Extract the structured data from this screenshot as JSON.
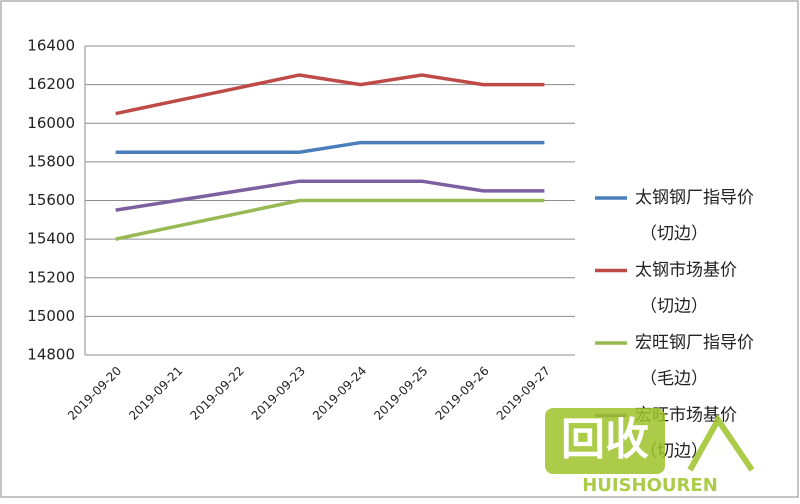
{
  "chart_data": {
    "type": "line",
    "categories": [
      "2019-09-20",
      "2019-09-21",
      "2019-09-22",
      "2019-09-23",
      "2019-09-24",
      "2019-09-25",
      "2019-09-26",
      "2019-09-27"
    ],
    "series": [
      {
        "name": "太钢钢厂指导价（切边）",
        "color": "#4a7ebb",
        "values": [
          15850,
          15850,
          15850,
          15850,
          15900,
          15900,
          15900,
          15900
        ]
      },
      {
        "name": "太钢市场基价（切边）",
        "color": "#be4b48",
        "values": [
          16050,
          16117,
          16183,
          16250,
          16200,
          16250,
          16200,
          16200
        ]
      },
      {
        "name": "宏旺钢厂指导价（毛边）",
        "color": "#98b954",
        "values": [
          15400,
          15467,
          15533,
          15600,
          15600,
          15600,
          15600,
          15600
        ]
      },
      {
        "name": "宏旺市场基价（切边）",
        "color": "#7d60a0",
        "values": [
          15550,
          15600,
          15650,
          15700,
          15700,
          15700,
          15650,
          15650
        ]
      }
    ],
    "ylim": [
      14800,
      16400
    ],
    "yticks": [
      14800,
      15000,
      15200,
      15400,
      15600,
      15800,
      16000,
      16200,
      16400
    ],
    "grid": true,
    "legend": "right",
    "watermark": {
      "text": "回收",
      "subtext": "HUISHOUREN"
    }
  }
}
